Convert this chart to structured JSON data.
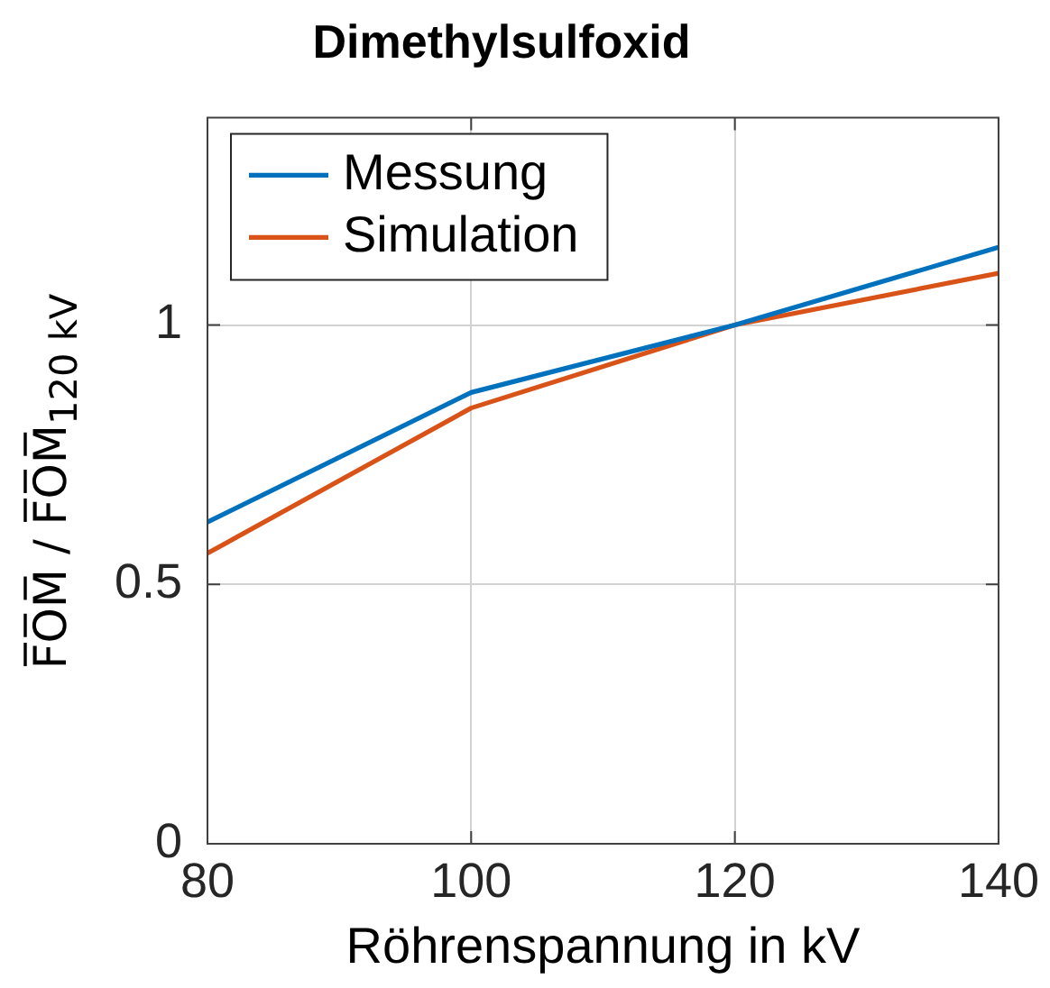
{
  "chart_data": {
    "type": "line",
    "title": "Dimethylsulfoxid",
    "xlabel": "Röhrenspannung in kV",
    "ylabel": "F̅O̅M̅ / F̅O̅M̅$_{120 kV}$",
    "x": [
      80,
      100,
      120,
      140
    ],
    "series": [
      {
        "name": "Messung",
        "color": "#0072bd",
        "values": [
          0.62,
          0.87,
          1,
          1.15
        ]
      },
      {
        "name": "Simulation",
        "color": "#d95319",
        "values": [
          0.56,
          0.84,
          1,
          1.1
        ]
      }
    ],
    "xlim": [
      80,
      140
    ],
    "xticks": [
      80,
      100,
      120,
      140
    ],
    "ylim": [
      0,
      1.4
    ],
    "yticks": [
      0,
      0.5,
      1
    ],
    "grid": true,
    "legend": "top left"
  }
}
